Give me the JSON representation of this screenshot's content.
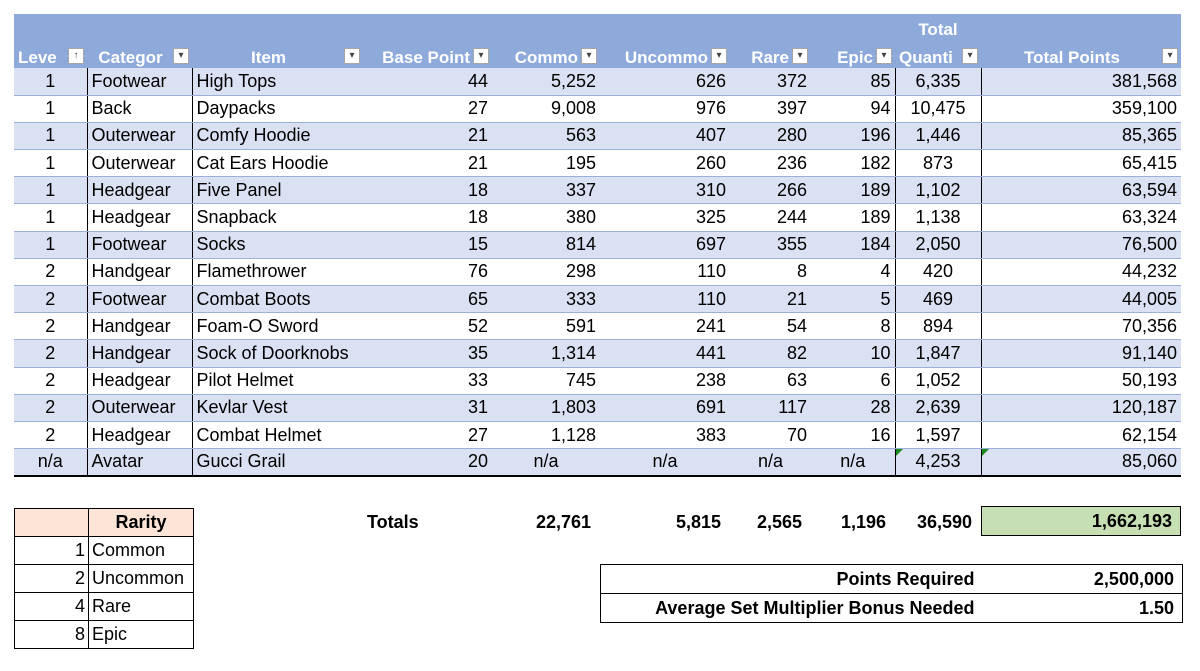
{
  "headers": {
    "level": "Leve",
    "category": "Categor",
    "item": "Item",
    "base_points": "Base Point",
    "common": "Commo",
    "uncommon": "Uncommo",
    "rare": "Rare",
    "epic": "Epic",
    "total_quantity_top": "Total",
    "total_quantity": "Quanti",
    "total_points": "Total Points"
  },
  "filter_icons": {
    "dropdown": "▾",
    "sort_asc": "↑"
  },
  "rows": [
    [
      "1",
      "Footwear",
      "High Tops",
      "44",
      "5,252",
      "626",
      "372",
      "85",
      "6,335",
      "381,568"
    ],
    [
      "1",
      "Back",
      "Daypacks",
      "27",
      "9,008",
      "976",
      "397",
      "94",
      "10,475",
      "359,100"
    ],
    [
      "1",
      "Outerwear",
      "Comfy Hoodie",
      "21",
      "563",
      "407",
      "280",
      "196",
      "1,446",
      "85,365"
    ],
    [
      "1",
      "Outerwear",
      "Cat Ears Hoodie",
      "21",
      "195",
      "260",
      "236",
      "182",
      "873",
      "65,415"
    ],
    [
      "1",
      "Headgear",
      "Five Panel",
      "18",
      "337",
      "310",
      "266",
      "189",
      "1,102",
      "63,594"
    ],
    [
      "1",
      "Headgear",
      "Snapback",
      "18",
      "380",
      "325",
      "244",
      "189",
      "1,138",
      "63,324"
    ],
    [
      "1",
      "Footwear",
      "Socks",
      "15",
      "814",
      "697",
      "355",
      "184",
      "2,050",
      "76,500"
    ],
    [
      "2",
      "Handgear",
      "Flamethrower",
      "76",
      "298",
      "110",
      "8",
      "4",
      "420",
      "44,232"
    ],
    [
      "2",
      "Footwear",
      "Combat Boots",
      "65",
      "333",
      "110",
      "21",
      "5",
      "469",
      "44,005"
    ],
    [
      "2",
      "Handgear",
      "Foam-O Sword",
      "52",
      "591",
      "241",
      "54",
      "8",
      "894",
      "70,356"
    ],
    [
      "2",
      "Handgear",
      "Sock of Doorknobs",
      "35",
      "1,314",
      "441",
      "82",
      "10",
      "1,847",
      "91,140"
    ],
    [
      "2",
      "Headgear",
      "Pilot Helmet",
      "33",
      "745",
      "238",
      "63",
      "6",
      "1,052",
      "50,193"
    ],
    [
      "2",
      "Outerwear",
      "Kevlar Vest",
      "31",
      "1,803",
      "691",
      "117",
      "28",
      "2,639",
      "120,187"
    ],
    [
      "2",
      "Headgear",
      "Combat Helmet",
      "27",
      "1,128",
      "383",
      "70",
      "16",
      "1,597",
      "62,154"
    ],
    [
      "n/a",
      "Avatar",
      "Gucci Grail",
      "20",
      "n/a",
      "n/a",
      "n/a",
      "n/a",
      "4,253",
      "85,060"
    ]
  ],
  "rarity": {
    "header": "Rarity",
    "items": [
      {
        "mult": "1",
        "name": "Common"
      },
      {
        "mult": "2",
        "name": "Uncommon"
      },
      {
        "mult": "4",
        "name": "Rare"
      },
      {
        "mult": "8",
        "name": "Epic"
      }
    ]
  },
  "totals": {
    "label": "Totals",
    "common": "22,761",
    "uncommon": "5,815",
    "rare": "2,565",
    "epic": "1,196",
    "quantity": "36,590",
    "points": "1,662,193"
  },
  "requirements": {
    "points_required_label": "Points Required",
    "points_required_value": "2,500,000",
    "multiplier_label": "Average Set Multiplier Bonus Needed",
    "multiplier_value": "1.50"
  },
  "colors": {
    "header_bg": "#8eaadb",
    "band_bg": "#d9e1f2",
    "total_points_bg": "#c6e0b4",
    "rarity_header_bg": "#fce4d6"
  }
}
